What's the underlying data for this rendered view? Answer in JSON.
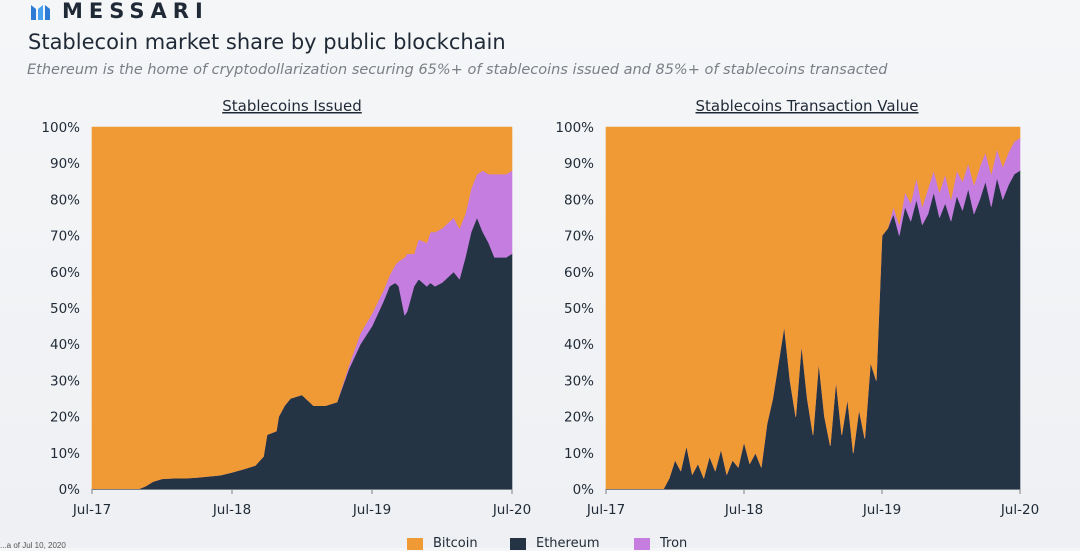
{
  "brand": {
    "name": "MESSARI"
  },
  "header": {
    "title": "Stablecoin market share by public blockchain",
    "subtitle": "Ethereum is the home of cryptodollarization securing 65%+ of stablecoins issued and 85%+ of stablecoins transacted"
  },
  "colors": {
    "bitcoin": "#ef9a35",
    "ethereum": "#243445",
    "tron": "#c57ee0"
  },
  "legend": [
    {
      "name": "Bitcoin",
      "color": "#ef9a35"
    },
    {
      "name": "Ethereum",
      "color": "#243445"
    },
    {
      "name": "Tron",
      "color": "#c57ee0"
    }
  ],
  "footnote": "...a of Jul 10, 2020",
  "chart_data": [
    {
      "type": "area",
      "stacked": true,
      "title": "Stablecoins Issued",
      "ylim": [
        0,
        100
      ],
      "y_ticks": [
        "0%",
        "10%",
        "20%",
        "30%",
        "40%",
        "50%",
        "60%",
        "70%",
        "80%",
        "90%",
        "100%"
      ],
      "x_ticks": [
        {
          "label": "Jul-17",
          "t": 0
        },
        {
          "label": "Jul-18",
          "t": 12
        },
        {
          "label": "Jul-19",
          "t": 24
        },
        {
          "label": "Jul-20",
          "t": 36
        }
      ],
      "x": [
        0,
        2,
        4,
        4.6,
        5.2,
        6,
        7,
        8,
        9,
        11,
        12,
        13,
        14,
        14.7,
        15,
        15.8,
        16,
        16.5,
        17,
        18,
        19,
        20,
        21,
        22,
        23,
        24,
        25,
        25.5,
        26,
        26.3,
        26.8,
        27,
        27.6,
        28,
        28.7,
        29,
        29.4,
        30,
        31,
        31.5,
        32,
        32.5,
        33,
        33.5,
        34,
        34.5,
        35,
        35.5,
        36
      ],
      "series": [
        {
          "name": "Ethereum",
          "values": [
            0,
            0,
            0,
            0.8,
            2.0,
            2.8,
            3.0,
            3.0,
            3.2,
            3.8,
            4.6,
            5.5,
            6.5,
            9,
            15,
            16,
            20,
            23,
            25,
            26,
            23,
            23,
            24,
            33,
            40,
            45,
            52,
            56,
            57,
            56,
            48,
            49,
            56,
            58,
            56,
            57,
            56,
            57,
            60,
            58,
            64,
            71,
            75,
            71,
            68,
            64,
            64,
            64,
            65
          ]
        },
        {
          "name": "Tron",
          "values": [
            0,
            0,
            0,
            0,
            0,
            0,
            0,
            0,
            0,
            0,
            0,
            0,
            0,
            0,
            0,
            0,
            0,
            0,
            0,
            0,
            0,
            0,
            0,
            1,
            3,
            3.5,
            3,
            3,
            5,
            7,
            16,
            16,
            9,
            11,
            12,
            14,
            15,
            15,
            15,
            14,
            12,
            12,
            12,
            17,
            19,
            23,
            23,
            23,
            23
          ]
        },
        {
          "name": "Bitcoin",
          "values": [
            100,
            100,
            100,
            99.2,
            98.0,
            97.2,
            97.0,
            97.0,
            96.8,
            96.2,
            95.4,
            94.5,
            93.5,
            91,
            85,
            84,
            80,
            77,
            75,
            74,
            77,
            77,
            76,
            66,
            57,
            51.5,
            45,
            41,
            38,
            37,
            36,
            35,
            35,
            31,
            32,
            29,
            29,
            28,
            25,
            28,
            24,
            17,
            13,
            12,
            13,
            13,
            13,
            13,
            12
          ]
        }
      ]
    },
    {
      "type": "area",
      "stacked": true,
      "title": "Stablecoins Transaction Value",
      "ylim": [
        0,
        100
      ],
      "y_ticks": [
        "0%",
        "10%",
        "20%",
        "30%",
        "40%",
        "50%",
        "60%",
        "70%",
        "80%",
        "90%",
        "100%"
      ],
      "x_ticks": [
        {
          "label": "Jul-17",
          "t": 0
        },
        {
          "label": "Jul-18",
          "t": 12
        },
        {
          "label": "Jul-19",
          "t": 24
        },
        {
          "label": "Jul-20",
          "t": 36
        }
      ],
      "x": [
        0,
        5,
        5.5,
        6,
        6.5,
        7,
        7.5,
        8,
        8.5,
        9,
        9.5,
        10,
        10.5,
        11,
        11.5,
        12,
        12.5,
        13,
        13.5,
        14,
        14.5,
        15,
        15.5,
        16,
        16.5,
        17,
        17.5,
        18,
        18.5,
        19,
        19.5,
        20,
        20.5,
        21,
        21.5,
        22,
        22.5,
        23,
        23.5,
        24,
        24.5,
        25,
        25.5,
        26,
        26.5,
        27,
        27.5,
        28,
        28.5,
        29,
        29.5,
        30,
        30.5,
        31,
        31.5,
        32,
        32.5,
        33,
        33.5,
        34,
        34.5,
        35,
        35.5,
        36
      ],
      "series": [
        {
          "name": "Ethereum",
          "values": [
            0,
            0,
            3,
            8,
            5,
            12,
            4,
            7,
            3,
            9,
            5,
            11,
            4,
            8,
            6,
            13,
            7,
            10,
            6,
            18,
            25,
            35,
            45,
            30,
            20,
            40,
            25,
            15,
            35,
            20,
            12,
            30,
            15,
            25,
            10,
            22,
            14,
            35,
            30,
            70,
            72,
            76,
            70,
            78,
            74,
            80,
            73,
            76,
            82,
            75,
            79,
            74,
            81,
            77,
            83,
            76,
            80,
            85,
            78,
            86,
            80,
            84,
            87,
            88
          ]
        },
        {
          "name": "Tron",
          "values": [
            0,
            0,
            0,
            0,
            0,
            0,
            0,
            0,
            0,
            0,
            0,
            0,
            0,
            0,
            0,
            0,
            0,
            0,
            0,
            0,
            0,
            0,
            0,
            0,
            0,
            0,
            0,
            0,
            0,
            0,
            0,
            0,
            0,
            0,
            0,
            0,
            0,
            0,
            0,
            0,
            0,
            2,
            3,
            4,
            5,
            6,
            5,
            7,
            6,
            7,
            8,
            6,
            7,
            8,
            7,
            8,
            9,
            8,
            9,
            8,
            9,
            9,
            9,
            9
          ]
        },
        {
          "name": "Bitcoin",
          "values": [
            100,
            100,
            97,
            92,
            95,
            88,
            96,
            93,
            97,
            91,
            95,
            89,
            96,
            92,
            94,
            87,
            93,
            90,
            94,
            82,
            75,
            65,
            55,
            70,
            80,
            60,
            75,
            85,
            65,
            80,
            88,
            70,
            85,
            75,
            90,
            78,
            86,
            65,
            70,
            30,
            28,
            22,
            27,
            18,
            21,
            14,
            22,
            17,
            12,
            18,
            13,
            20,
            12,
            15,
            10,
            16,
            11,
            7,
            13,
            6,
            11,
            7,
            4,
            3
          ]
        }
      ]
    }
  ]
}
